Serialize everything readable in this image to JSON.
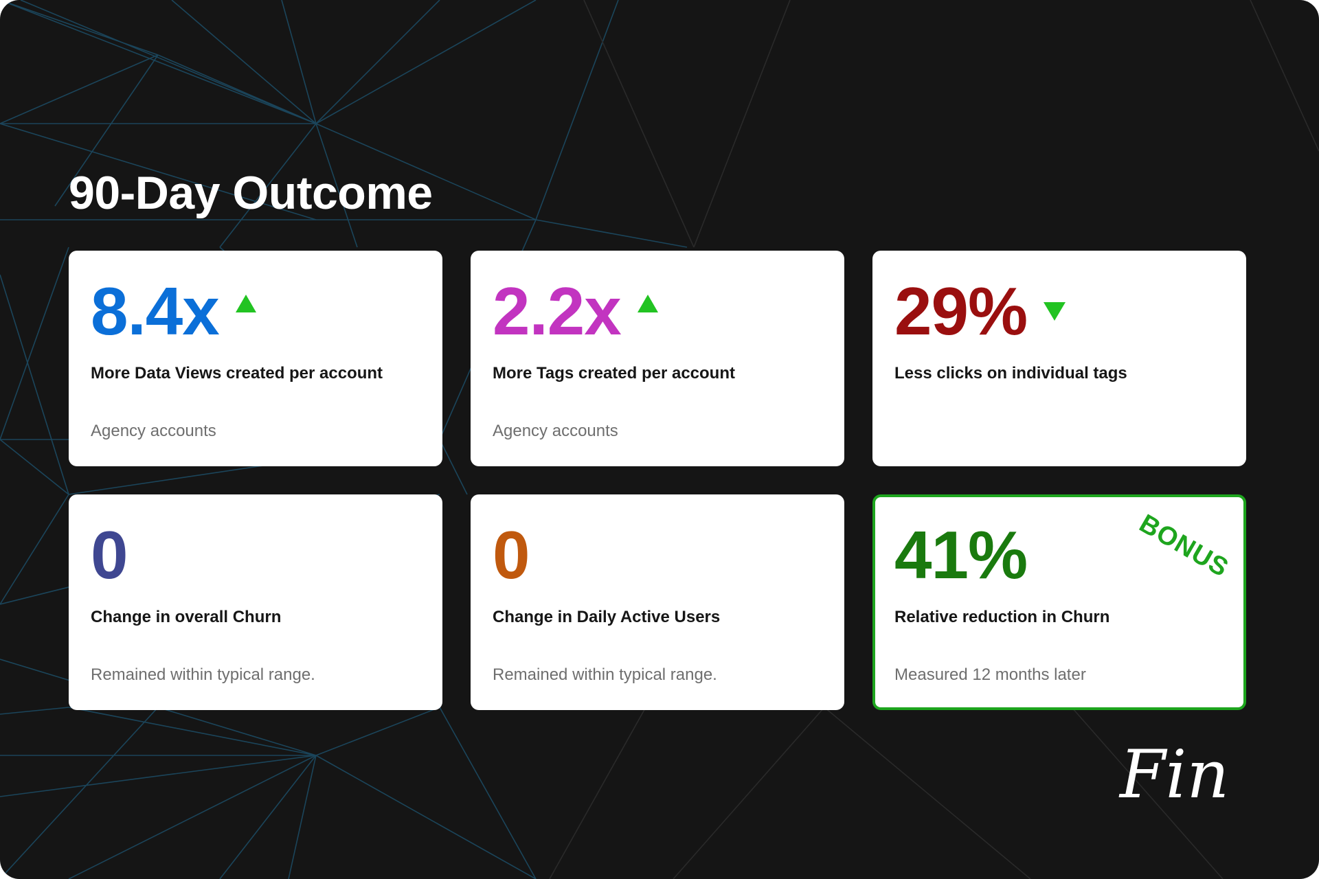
{
  "title": "90-Day Outcome",
  "cards": [
    {
      "value": "8.4x",
      "value_color": "#0b6fd8",
      "trend": "up",
      "trend_icon": "triangle-up-icon",
      "label": "More Data Views created per account",
      "sub": "Agency accounts"
    },
    {
      "value": "2.2x",
      "value_color": "#c234c0",
      "trend": "up",
      "trend_icon": "triangle-up-icon",
      "label": "More Tags created per account",
      "sub": "Agency accounts"
    },
    {
      "value": "29%",
      "value_color": "#9a0f0f",
      "trend": "down",
      "trend_icon": "triangle-down-icon",
      "label": "Less clicks on individual tags",
      "sub": ""
    },
    {
      "value": "0",
      "value_color": "#3f4791",
      "label": "Change in overall Churn",
      "sub": "Remained within typical range."
    },
    {
      "value": "0",
      "value_color": "#c0590e",
      "label": "Change in Daily Active Users",
      "sub": "Remained within typical range."
    },
    {
      "value": "41%",
      "value_color": "#1a7a0e",
      "label": "Relative reduction in Churn",
      "sub": "Measured 12 months later",
      "badge": "BONUS",
      "border_color": "#1ea51e"
    }
  ],
  "trend_color": "#22c322",
  "logo_text": "Fin"
}
